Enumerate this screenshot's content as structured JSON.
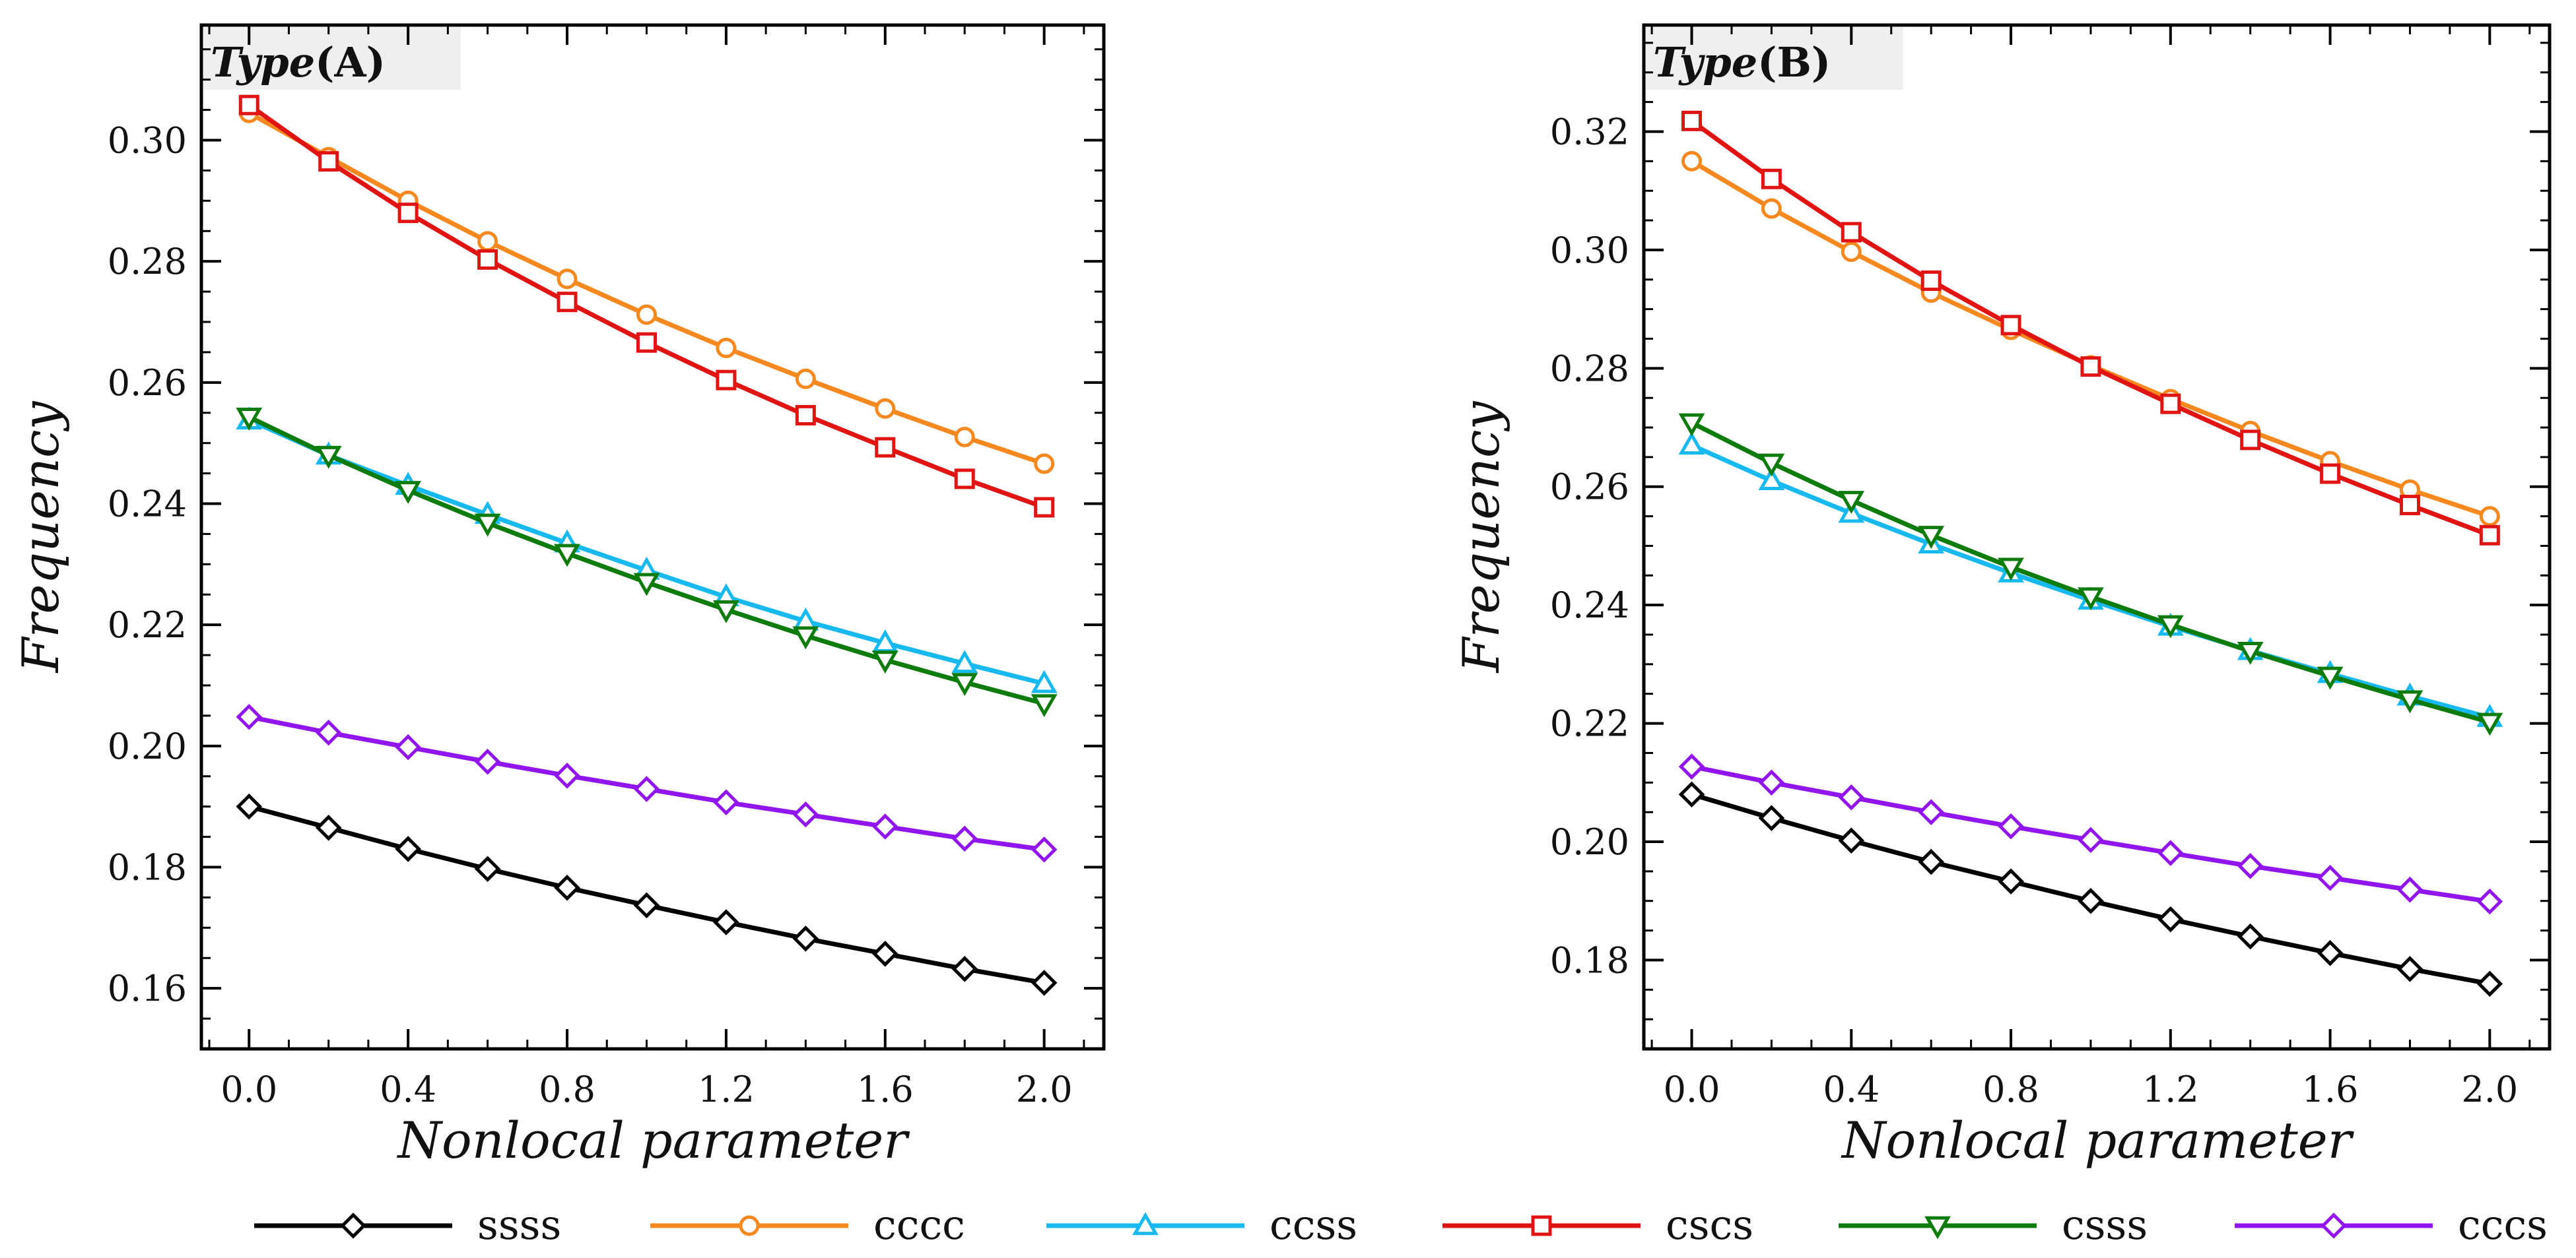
{
  "colors": {
    "ssss": "#000000",
    "cccc": "#f5891f",
    "ccss": "#18b9ee",
    "cscs": "#e11414",
    "csss": "#0d7c0d",
    "cccs": "#9116ee"
  },
  "legend": [
    {
      "key": "ssss",
      "label": "ssss",
      "marker": "diamond"
    },
    {
      "key": "cccc",
      "label": "cccc",
      "marker": "circle"
    },
    {
      "key": "ccss",
      "label": "ccss",
      "marker": "triangle-up"
    },
    {
      "key": "cscs",
      "label": "cscs",
      "marker": "square"
    },
    {
      "key": "csss",
      "label": "csss",
      "marker": "triangle-down"
    },
    {
      "key": "cccs",
      "label": "cccs",
      "marker": "diamond"
    }
  ],
  "chart_data": [
    {
      "type": "line",
      "panel_label_italic": "Type",
      "panel_label_normal": "(A)",
      "xlabel": "Nonlocal parameter",
      "ylabel": "Frequency",
      "xlim": [
        -0.12,
        2.15
      ],
      "ylim": [
        0.15,
        0.319
      ],
      "xticks": [
        0.0,
        0.4,
        0.8,
        1.2,
        1.6,
        2.0
      ],
      "xtick_labels": [
        "0.0",
        "0.4",
        "0.8",
        "1.2",
        "1.6",
        "2.0"
      ],
      "yticks": [
        0.16,
        0.18,
        0.2,
        0.22,
        0.24,
        0.26,
        0.28,
        0.3
      ],
      "ytick_labels": [
        "0.16",
        "0.18",
        "0.20",
        "0.22",
        "0.24",
        "0.26",
        "0.28",
        "0.30"
      ],
      "x": [
        0.0,
        0.2,
        0.4,
        0.6,
        0.8,
        1.0,
        1.2,
        1.4,
        1.6,
        1.8,
        2.0
      ],
      "series": [
        {
          "key": "ssss",
          "marker": "diamond",
          "values": [
            0.19,
            0.1865,
            0.183,
            0.1797,
            0.1766,
            0.1737,
            0.1709,
            0.1682,
            0.1657,
            0.1632,
            0.1609
          ]
        },
        {
          "key": "cccc",
          "marker": "circle",
          "values": [
            0.3045,
            0.2972,
            0.29,
            0.2833,
            0.2771,
            0.2712,
            0.2657,
            0.2606,
            0.2557,
            0.251,
            0.2466
          ]
        },
        {
          "key": "ccss",
          "marker": "triangle-up",
          "values": [
            0.2538,
            0.248,
            0.243,
            0.2382,
            0.2335,
            0.229,
            0.2246,
            0.2206,
            0.217,
            0.2136,
            0.2103
          ]
        },
        {
          "key": "cscs",
          "marker": "square",
          "values": [
            0.3058,
            0.2965,
            0.288,
            0.2803,
            0.2733,
            0.2666,
            0.2604,
            0.2546,
            0.2493,
            0.2441,
            0.2394
          ]
        },
        {
          "key": "csss",
          "marker": "triangle-down",
          "values": [
            0.2543,
            0.248,
            0.2422,
            0.2368,
            0.2318,
            0.227,
            0.2225,
            0.2182,
            0.2142,
            0.2105,
            0.207
          ]
        },
        {
          "key": "cccs",
          "marker": "diamond",
          "values": [
            0.2048,
            0.2022,
            0.1998,
            0.1974,
            0.1951,
            0.1929,
            0.1907,
            0.1887,
            0.1867,
            0.1847,
            0.1829
          ]
        }
      ]
    },
    {
      "type": "line",
      "panel_label_italic": "Type",
      "panel_label_normal": "(B)",
      "xlabel": "Nonlocal parameter",
      "ylabel": "Frequency",
      "xlim": [
        -0.12,
        2.15
      ],
      "ylim": [
        0.165,
        0.338
      ],
      "xticks": [
        0.0,
        0.4,
        0.8,
        1.2,
        1.6,
        2.0
      ],
      "xtick_labels": [
        "0.0",
        "0.4",
        "0.8",
        "1.2",
        "1.6",
        "2.0"
      ],
      "yticks": [
        0.18,
        0.2,
        0.22,
        0.24,
        0.26,
        0.28,
        0.3,
        0.32
      ],
      "ytick_labels": [
        "0.18",
        "0.20",
        "0.22",
        "0.24",
        "0.26",
        "0.28",
        "0.30",
        "0.32"
      ],
      "x": [
        0.0,
        0.2,
        0.4,
        0.6,
        0.8,
        1.0,
        1.2,
        1.4,
        1.6,
        1.8,
        2.0
      ],
      "series": [
        {
          "key": "ssss",
          "marker": "diamond",
          "values": [
            0.208,
            0.204,
            0.2002,
            0.1966,
            0.1933,
            0.19,
            0.1869,
            0.184,
            0.1812,
            0.1785,
            0.176
          ]
        },
        {
          "key": "cccc",
          "marker": "circle",
          "values": [
            0.315,
            0.307,
            0.2997,
            0.2928,
            0.2865,
            0.2805,
            0.2748,
            0.2694,
            0.2643,
            0.2595,
            0.255
          ]
        },
        {
          "key": "ccss",
          "marker": "triangle-up",
          "values": [
            0.267,
            0.261,
            0.2555,
            0.2503,
            0.2454,
            0.2408,
            0.2364,
            0.2323,
            0.2284,
            0.2246,
            0.221
          ]
        },
        {
          "key": "cscs",
          "marker": "square",
          "values": [
            0.3218,
            0.312,
            0.303,
            0.2948,
            0.2873,
            0.2803,
            0.274,
            0.2679,
            0.2622,
            0.2569,
            0.2518
          ]
        },
        {
          "key": "csss",
          "marker": "triangle-down",
          "values": [
            0.2708,
            0.264,
            0.2577,
            0.2518,
            0.2464,
            0.2414,
            0.2367,
            0.2322,
            0.228,
            0.224,
            0.2202
          ]
        },
        {
          "key": "cccs",
          "marker": "diamond",
          "values": [
            0.2127,
            0.21,
            0.2075,
            0.205,
            0.2026,
            0.2003,
            0.1981,
            0.1959,
            0.1939,
            0.1919,
            0.1899
          ]
        }
      ]
    }
  ]
}
